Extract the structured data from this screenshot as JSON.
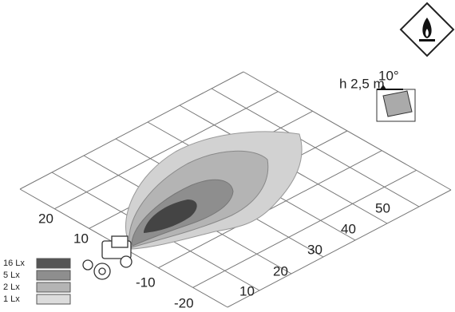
{
  "left_axis_labels": [
    "20",
    "10",
    "-10",
    "-20"
  ],
  "right_axis_labels": [
    "10",
    "20",
    "30",
    "40",
    "50"
  ],
  "mounting": {
    "height": "h 2,5 m",
    "angle": "10°"
  },
  "legend": [
    "16 Lx",
    "5 Lx",
    "2 Lx",
    "1 Lx"
  ]
}
